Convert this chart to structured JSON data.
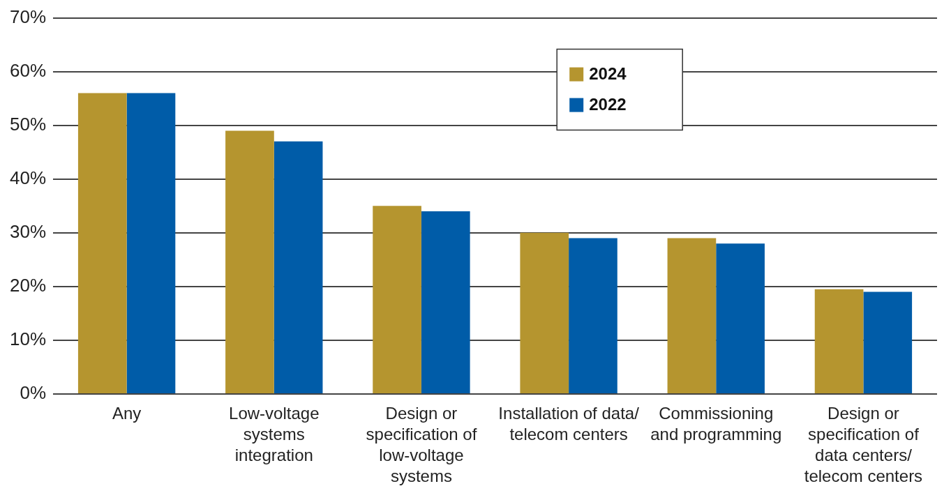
{
  "chart_data": {
    "type": "bar",
    "categories": [
      "Any",
      "Low-voltage systems integration",
      "Design or specification of low-voltage systems",
      "Installation of data/ telecom centers",
      "Commissioning and programming",
      "Design or specification of data centers/ telecom centers"
    ],
    "series": [
      {
        "name": "2024",
        "color": "#b5952f",
        "values": [
          56,
          49,
          35,
          30,
          29,
          19.5
        ]
      },
      {
        "name": "2022",
        "color": "#005ca8",
        "values": [
          56,
          47,
          34,
          29,
          28,
          19
        ]
      }
    ],
    "ylim": [
      0,
      70
    ],
    "yticks": [
      {
        "value": 0,
        "label": "0%"
      },
      {
        "value": 10,
        "label": "10%"
      },
      {
        "value": 20,
        "label": "20%"
      },
      {
        "value": 30,
        "label": "30%"
      },
      {
        "value": 40,
        "label": "40%"
      },
      {
        "value": 50,
        "label": "50%"
      },
      {
        "value": 60,
        "label": "60%"
      },
      {
        "value": 70,
        "label": "70%"
      }
    ],
    "grid": "y",
    "legend": "top"
  }
}
